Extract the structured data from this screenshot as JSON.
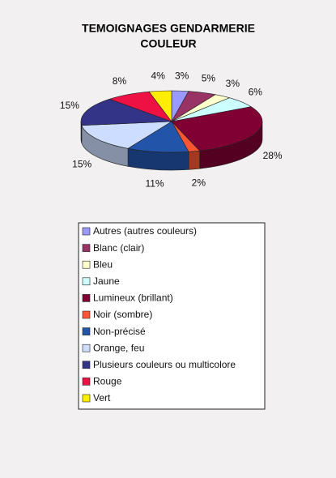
{
  "chart_data": {
    "type": "pie",
    "title": [
      "TEMOIGNAGES GENDARMERIE",
      "COULEUR"
    ],
    "categories": [
      "Autres (autres couleurs)",
      "Blanc (clair)",
      "Bleu",
      "Jaune",
      "Lumineux (brillant)",
      "Noir (sombre)",
      "Non-précisé",
      "Orange, feu",
      "Plusieurs couleurs ou multicolore",
      "Rouge",
      "Vert"
    ],
    "values": [
      3,
      5,
      3,
      6,
      28,
      2,
      11,
      15,
      15,
      8,
      4
    ],
    "value_labels": [
      "3%",
      "5%",
      "3%",
      "6%",
      "28%",
      "2%",
      "11%",
      "15%",
      "15%",
      "8%",
      "4%"
    ],
    "colors": [
      "#9999ff",
      "#993366",
      "#ffffcc",
      "#ccffff",
      "#800033",
      "#ff5533",
      "#2255aa",
      "#ccddff",
      "#333388",
      "#ee1144",
      "#ffee00"
    ],
    "legend": "bottom"
  }
}
